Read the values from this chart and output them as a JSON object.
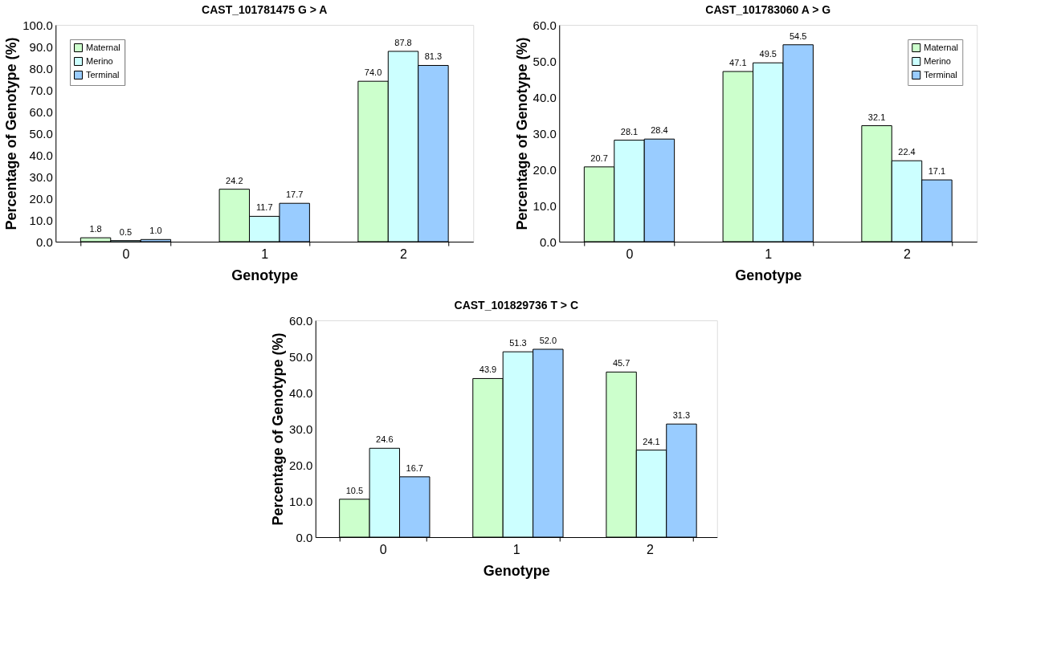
{
  "chart_data": [
    {
      "type": "bar",
      "title": "CAST_101781475 G > A",
      "xlabel": "Genotype",
      "ylabel": "Percentage of Genotype (%)",
      "categories": [
        "0",
        "1",
        "2"
      ],
      "series": [
        {
          "name": "Maternal",
          "color": "#ccffcc",
          "values": [
            1.8,
            24.2,
            74.0
          ],
          "value_labels": [
            "1.8",
            "24.2",
            "74.0"
          ]
        },
        {
          "name": "Merino",
          "color": "#ccffff",
          "values": [
            0.5,
            11.7,
            87.8
          ],
          "value_labels": [
            "0.5",
            "11.7",
            "87.8"
          ]
        },
        {
          "name": "Terminal",
          "color": "#99ccff",
          "values": [
            1.0,
            17.7,
            81.3
          ],
          "value_labels": [
            "1.0",
            "17.7",
            "81.3"
          ]
        }
      ],
      "ylim": [
        0,
        100
      ],
      "yticks": [
        {
          "value": 0,
          "label": "0.0"
        },
        {
          "value": 10,
          "label": "10.0"
        },
        {
          "value": 20,
          "label": "20.0"
        },
        {
          "value": 30,
          "label": "30.0"
        },
        {
          "value": 40,
          "label": "40.0"
        },
        {
          "value": 50,
          "label": "50.0"
        },
        {
          "value": 60,
          "label": "60.0"
        },
        {
          "value": 70,
          "label": "70.0"
        },
        {
          "value": 80,
          "label": "80.0"
        },
        {
          "value": 90,
          "label": "90.0"
        },
        {
          "value": 100,
          "label": "100.0"
        }
      ],
      "grid": false,
      "legend": "top left"
    },
    {
      "type": "bar",
      "title": "CAST_101783060 A > G",
      "xlabel": "Genotype",
      "ylabel": "Percentage of Genotype (%)",
      "categories": [
        "0",
        "1",
        "2"
      ],
      "series": [
        {
          "name": "Maternal",
          "color": "#ccffcc",
          "values": [
            20.7,
            47.1,
            32.1
          ],
          "value_labels": [
            "20.7",
            "47.1",
            "32.1"
          ]
        },
        {
          "name": "Merino",
          "color": "#ccffff",
          "values": [
            28.1,
            49.5,
            22.4
          ],
          "value_labels": [
            "28.1",
            "49.5",
            "22.4"
          ]
        },
        {
          "name": "Terminal",
          "color": "#99ccff",
          "values": [
            28.4,
            54.5,
            17.1
          ],
          "value_labels": [
            "28.4",
            "54.5",
            "17.1"
          ]
        }
      ],
      "ylim": [
        0,
        60
      ],
      "yticks": [
        {
          "value": 0,
          "label": "0.0"
        },
        {
          "value": 10,
          "label": "10.0"
        },
        {
          "value": 20,
          "label": "20.0"
        },
        {
          "value": 30,
          "label": "30.0"
        },
        {
          "value": 40,
          "label": "40.0"
        },
        {
          "value": 50,
          "label": "50.0"
        },
        {
          "value": 60,
          "label": "60.0"
        }
      ],
      "grid": false,
      "legend": "top right"
    },
    {
      "type": "bar",
      "title": "CAST_101829736 T > C",
      "xlabel": "Genotype",
      "ylabel": "Percentage of Genotype (%)",
      "categories": [
        "0",
        "1",
        "2"
      ],
      "series": [
        {
          "name": "Maternal",
          "color": "#ccffcc",
          "values": [
            10.5,
            43.9,
            45.7
          ],
          "value_labels": [
            "10.5",
            "43.9",
            "45.7"
          ]
        },
        {
          "name": "Merino",
          "color": "#ccffff",
          "values": [
            24.6,
            51.3,
            24.1
          ],
          "value_labels": [
            "24.6",
            "51.3",
            "24.1"
          ]
        },
        {
          "name": "Terminal",
          "color": "#99ccff",
          "values": [
            16.7,
            52.0,
            31.3
          ],
          "value_labels": [
            "16.7",
            "52.0",
            "31.3"
          ]
        }
      ],
      "ylim": [
        0,
        60
      ],
      "yticks": [
        {
          "value": 0,
          "label": "0.0"
        },
        {
          "value": 10,
          "label": "10.0"
        },
        {
          "value": 20,
          "label": "20.0"
        },
        {
          "value": 30,
          "label": "30.0"
        },
        {
          "value": 40,
          "label": "40.0"
        },
        {
          "value": 50,
          "label": "50.0"
        },
        {
          "value": 60,
          "label": "60.0"
        }
      ],
      "grid": false,
      "legend": "top left"
    }
  ]
}
